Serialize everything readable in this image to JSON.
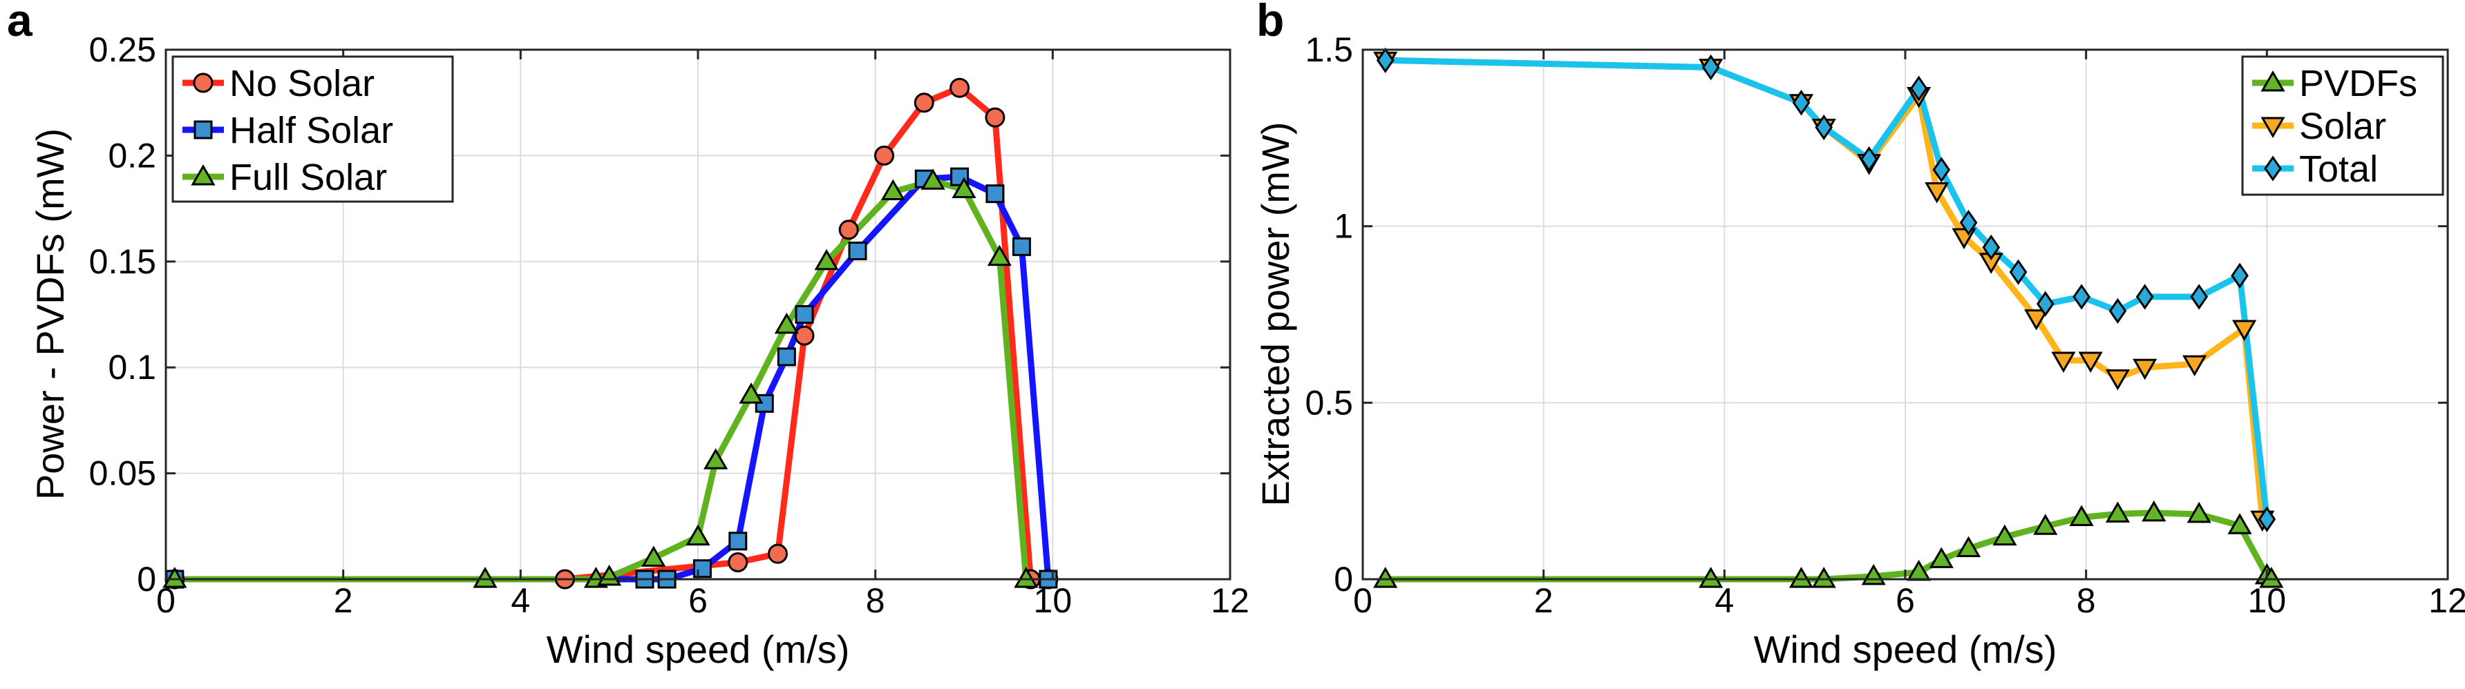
{
  "chart_data": [
    {
      "type": "line",
      "panel_label": "a",
      "xlabel": "Wind speed (m/s)",
      "ylabel": "Power - PVDFs (mW)",
      "xlim": [
        0,
        12
      ],
      "ylim": [
        0,
        0.25
      ],
      "xticks": [
        0,
        2,
        4,
        6,
        8,
        10,
        12
      ],
      "yticks": [
        0,
        0.05,
        0.1,
        0.15,
        0.2,
        0.25
      ],
      "xtick_labels": [
        "0",
        "2",
        "4",
        "6",
        "8",
        "10",
        "12"
      ],
      "ytick_labels": [
        "0",
        "0.05",
        "0.1",
        "0.15",
        "0.2",
        "0.25"
      ],
      "grid": true,
      "legend_position": "top-left",
      "series": [
        {
          "name": "No Solar",
          "color": "#ff2a1a",
          "marker": "circle",
          "marker_fill": "#f26d4f",
          "x": [
            0.1,
            4.5,
            6.45,
            6.9,
            7.2,
            7.7,
            8.1,
            8.55,
            8.95,
            9.35,
            9.75,
            9.95
          ],
          "y": [
            0,
            0,
            0.008,
            0.012,
            0.115,
            0.165,
            0.2,
            0.225,
            0.232,
            0.218,
            0,
            0
          ]
        },
        {
          "name": "Half Solar",
          "color": "#1414ff",
          "marker": "square",
          "marker_fill": "#3a8fd0",
          "x": [
            0.1,
            5.4,
            5.65,
            6.05,
            6.45,
            6.75,
            7.0,
            7.2,
            7.8,
            8.55,
            8.95,
            9.35,
            9.65,
            9.95
          ],
          "y": [
            0,
            0,
            0,
            0.005,
            0.018,
            0.083,
            0.105,
            0.125,
            0.155,
            0.189,
            0.19,
            0.182,
            0.157,
            0
          ]
        },
        {
          "name": "Full Solar",
          "color": "#5fb31e",
          "marker": "triangle-up",
          "marker_fill": "#63b528",
          "x": [
            0.1,
            3.6,
            4.85,
            5.0,
            5.5,
            6.0,
            6.2,
            6.6,
            7.0,
            7.45,
            8.2,
            8.65,
            9.0,
            9.4,
            9.7
          ],
          "y": [
            0,
            0,
            0,
            0.001,
            0.01,
            0.02,
            0.056,
            0.087,
            0.12,
            0.15,
            0.183,
            0.188,
            0.184,
            0.152,
            0
          ]
        }
      ]
    },
    {
      "type": "line",
      "panel_label": "b",
      "xlabel": "Wind speed (m/s)",
      "ylabel": "Extracted power (mW)",
      "xlim": [
        0,
        12
      ],
      "ylim": [
        0,
        1.5
      ],
      "xticks": [
        0,
        2,
        4,
        6,
        8,
        10,
        12
      ],
      "yticks": [
        0,
        0.5,
        1,
        1.5
      ],
      "xtick_labels": [
        "0",
        "2",
        "4",
        "6",
        "8",
        "10",
        "12"
      ],
      "ytick_labels": [
        "0",
        "0.5",
        "1",
        "1.5"
      ],
      "grid": true,
      "legend_position": "top-right",
      "series": [
        {
          "name": "PVDFs",
          "color": "#5fb31e",
          "marker": "triangle-up",
          "marker_fill": "#63b528",
          "x": [
            0.25,
            3.85,
            4.85,
            5.1,
            5.65,
            6.15,
            6.4,
            6.7,
            7.1,
            7.55,
            7.95,
            8.35,
            8.75,
            9.25,
            9.7,
            10.0,
            10.05
          ],
          "y": [
            0,
            0,
            0,
            0,
            0.008,
            0.02,
            0.056,
            0.087,
            0.12,
            0.15,
            0.175,
            0.185,
            0.188,
            0.184,
            0.152,
            0.01,
            0
          ]
        },
        {
          "name": "Solar",
          "color": "#ffb41a",
          "marker": "triangle-down",
          "marker_fill": "#f5a623",
          "x": [
            0.25,
            3.85,
            4.85,
            5.1,
            5.6,
            6.15,
            6.35,
            6.65,
            6.95,
            7.45,
            7.75,
            8.05,
            8.35,
            8.65,
            9.2,
            9.75,
            9.95
          ],
          "y": [
            1.47,
            1.45,
            1.35,
            1.28,
            1.18,
            1.37,
            1.1,
            0.97,
            0.9,
            0.74,
            0.62,
            0.62,
            0.57,
            0.6,
            0.61,
            0.71,
            0.17
          ]
        },
        {
          "name": "Total",
          "color": "#19c3ee",
          "marker": "diamond",
          "marker_fill": "#2aa8d8",
          "x": [
            0.25,
            3.85,
            4.85,
            5.1,
            5.6,
            6.15,
            6.4,
            6.7,
            6.95,
            7.25,
            7.55,
            7.95,
            8.35,
            8.65,
            9.25,
            9.7,
            10.0
          ],
          "y": [
            1.47,
            1.45,
            1.35,
            1.28,
            1.19,
            1.39,
            1.16,
            1.01,
            0.94,
            0.87,
            0.78,
            0.8,
            0.76,
            0.8,
            0.8,
            0.86,
            0.17
          ]
        }
      ]
    }
  ]
}
